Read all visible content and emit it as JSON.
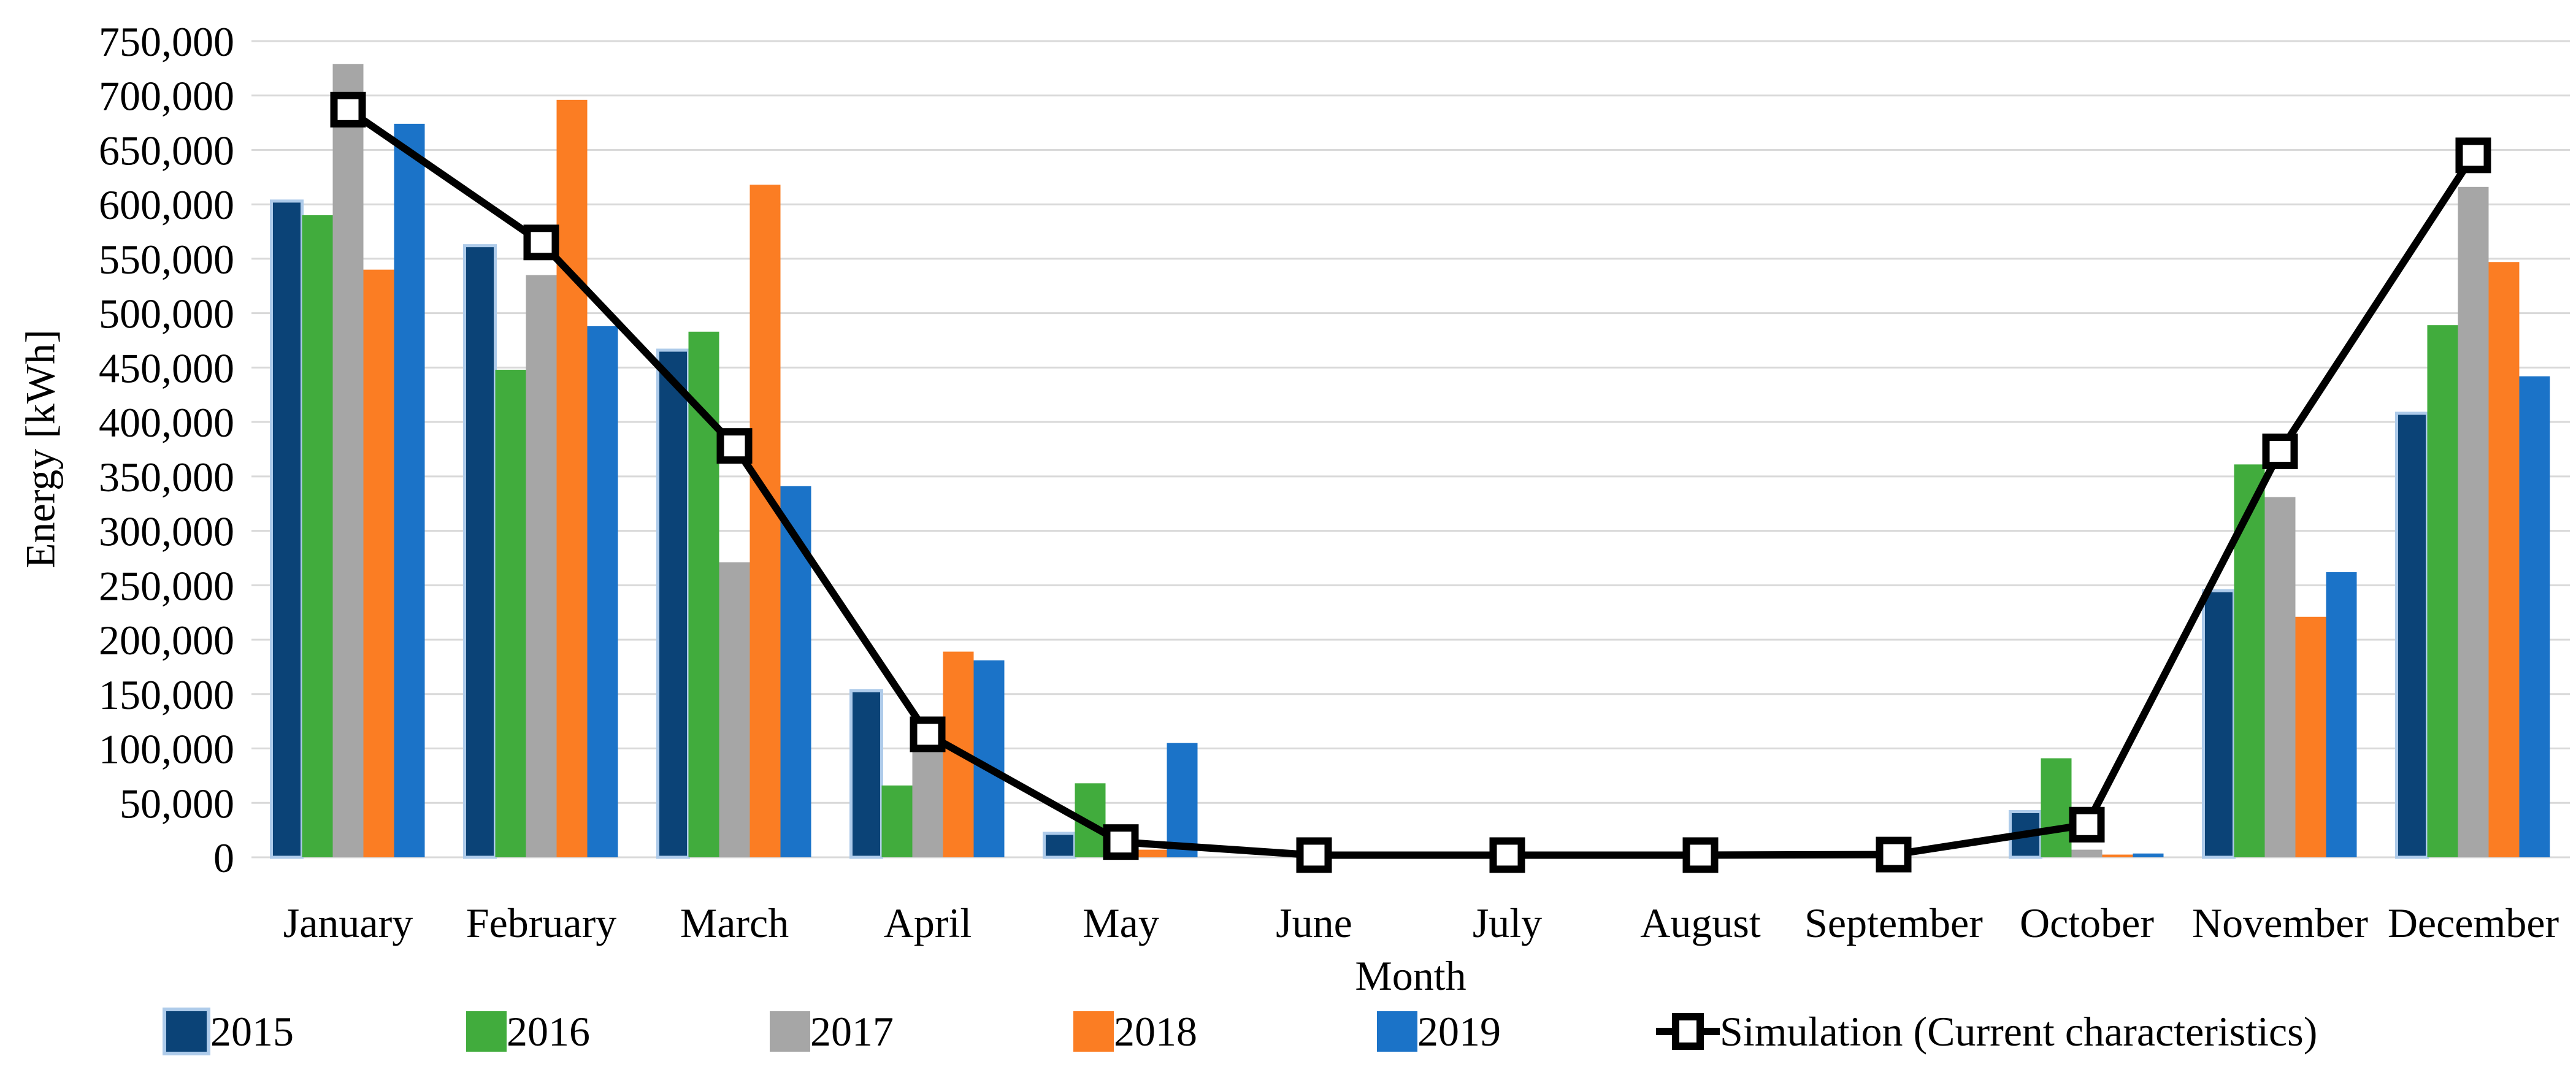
{
  "chart_data": {
    "type": "bar",
    "title": "",
    "xlabel": "Month",
    "ylabel": "Energy [kWh]",
    "ylim": [
      0,
      750000
    ],
    "ytick_step": 50000,
    "yticks": [
      "0",
      "50,000",
      "100,000",
      "150,000",
      "200,000",
      "250,000",
      "300,000",
      "350,000",
      "400,000",
      "450,000",
      "500,000",
      "550,000",
      "600,000",
      "650,000",
      "700,000",
      "750,000"
    ],
    "grid": "horizontal",
    "gridline_color": "#D9D9D9",
    "legend_position": "bottom",
    "background": "#FFFFFF",
    "categories": [
      "January",
      "February",
      "March",
      "April",
      "May",
      "June",
      "July",
      "August",
      "September",
      "October",
      "November",
      "December"
    ],
    "series": [
      {
        "name": "2015",
        "type": "bar",
        "color": "#0B4377",
        "border_color": "#AECBEA",
        "values": [
          603000,
          562000,
          466000,
          153000,
          22000,
          0,
          0,
          0,
          0,
          42000,
          245000,
          408000
        ]
      },
      {
        "name": "2016",
        "type": "bar",
        "color": "#41AC3D",
        "values": [
          590000,
          448000,
          483000,
          66000,
          68000,
          0,
          0,
          0,
          0,
          91000,
          361000,
          489000
        ]
      },
      {
        "name": "2017",
        "type": "bar",
        "color": "#A6A6A6",
        "values": [
          729000,
          535000,
          271000,
          97000,
          11000,
          0,
          0,
          0,
          0,
          7000,
          331000,
          616000
        ]
      },
      {
        "name": "2018",
        "type": "bar",
        "color": "#FB7D23",
        "values": [
          540000,
          696000,
          618000,
          189000,
          7000,
          0,
          0,
          0,
          0,
          2500,
          221000,
          547000
        ]
      },
      {
        "name": "2019",
        "type": "bar",
        "color": "#1B73C8",
        "values": [
          674000,
          488000,
          341000,
          181000,
          105000,
          0,
          0,
          0,
          0,
          3500,
          262000,
          442000
        ]
      },
      {
        "name": "Simulation (Current characteristics)",
        "type": "line",
        "color": "#000000",
        "marker": "open-square",
        "values": [
          687000,
          565000,
          378000,
          113000,
          14000,
          2000,
          2000,
          2000,
          2500,
          30000,
          373000,
          645000
        ]
      }
    ]
  }
}
